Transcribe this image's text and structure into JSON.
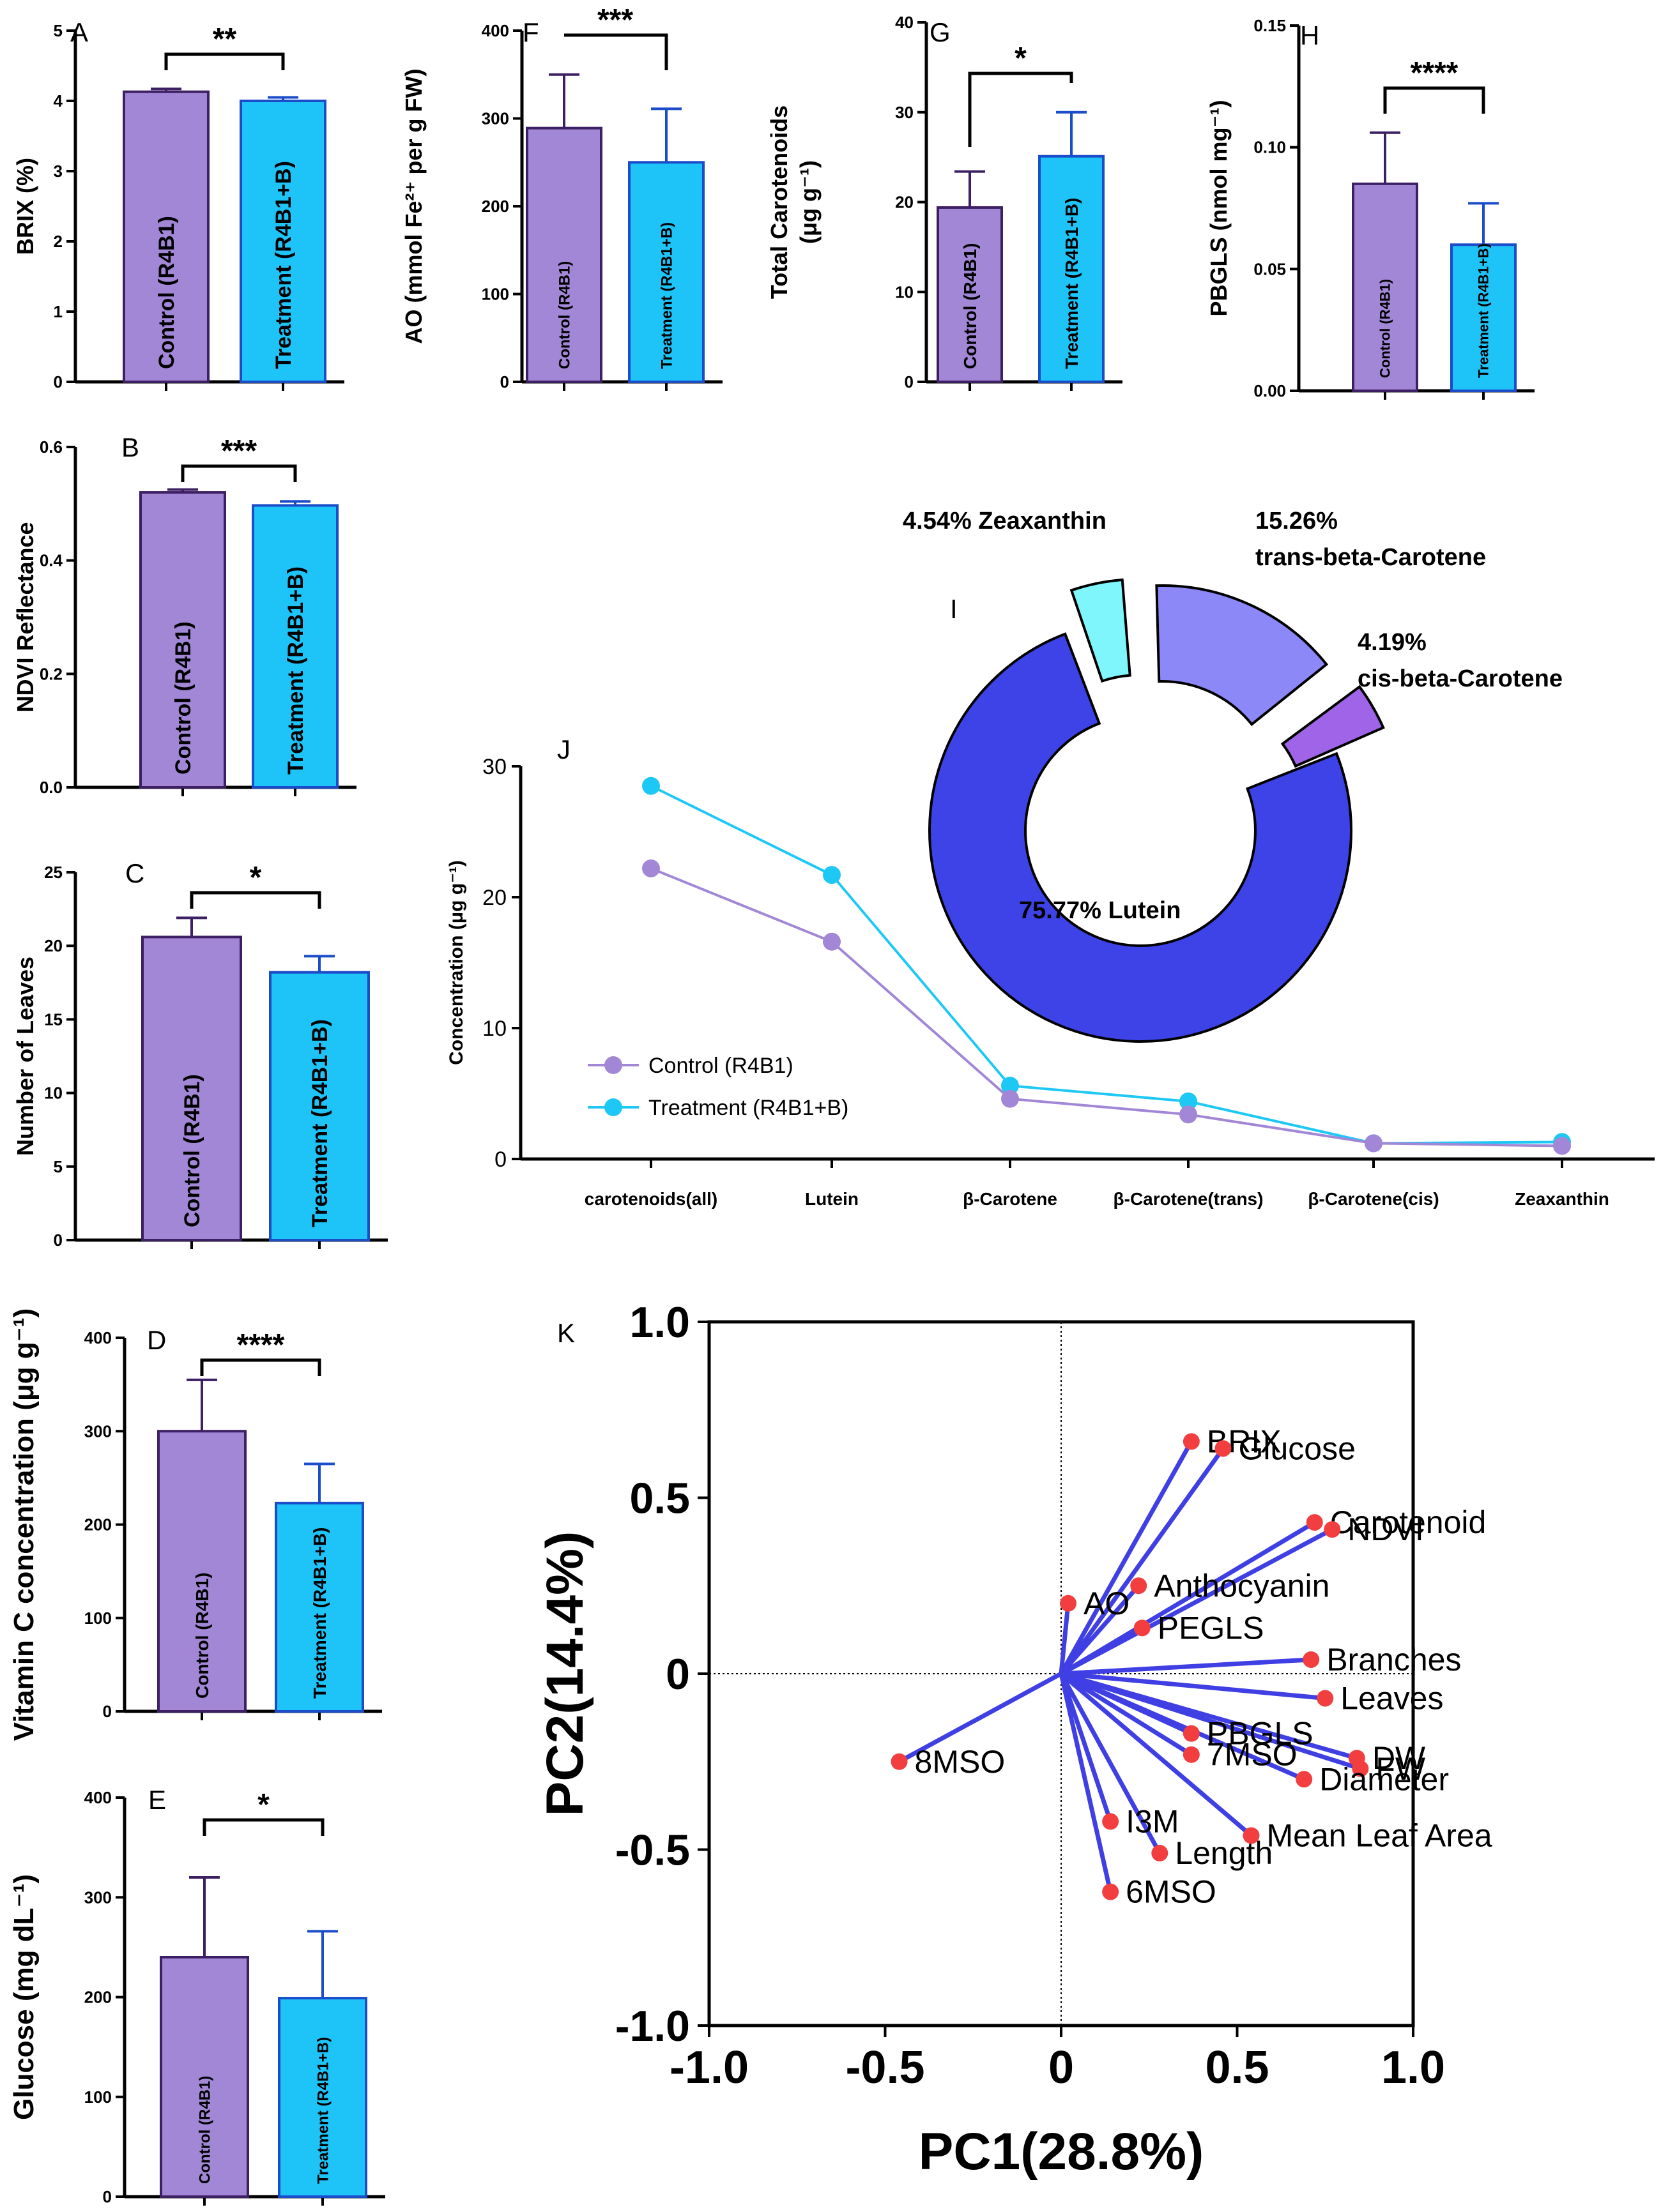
{
  "colors": {
    "control_fill": "#a187d6",
    "control_edge": "#3d1f63",
    "treatment_fill": "#1ec3f7",
    "treatment_edge": "#1b4cc9",
    "line_control": "#a187d6",
    "line_treatment": "#1ec8f5",
    "pie": [
      "#3d43e6",
      "#8c88f8",
      "#a064e8",
      "#7ff6fb"
    ],
    "pca_vector": "#3f3fe3",
    "pca_point": "#f23e3e"
  },
  "chart_data": [
    {
      "id": "A",
      "type": "bar",
      "letter": "A",
      "ylabel": "BRIX (%)",
      "categories": [
        "Control (R4B1)",
        "Treatment (R4B1+B)"
      ],
      "values": [
        4.13,
        4.0
      ],
      "errors": [
        0.04,
        0.05
      ],
      "ylim": [
        0,
        5
      ],
      "ticks": [
        "0",
        "1",
        "2",
        "3",
        "4",
        "5"
      ],
      "significance": "**"
    },
    {
      "id": "B",
      "type": "bar",
      "letter": "B",
      "ylabel": "NDVI Reflectance",
      "categories": [
        "Control (R4B1)",
        "Treatment (R4B1+B)"
      ],
      "values": [
        0.52,
        0.497
      ],
      "errors": [
        0.005,
        0.007
      ],
      "ylim": [
        0,
        0.6
      ],
      "ticks": [
        "0.0",
        "0.2",
        "0.4",
        "0.6"
      ],
      "significance": "***"
    },
    {
      "id": "C",
      "type": "bar",
      "letter": "C",
      "ylabel": "Number of Leaves",
      "categories": [
        "Control (R4B1)",
        "Treatment (R4B1+B)"
      ],
      "values": [
        20.6,
        18.2
      ],
      "errors": [
        1.3,
        1.1
      ],
      "ylim": [
        0,
        25
      ],
      "ticks": [
        "0",
        "5",
        "10",
        "15",
        "20",
        "25"
      ],
      "significance": "*"
    },
    {
      "id": "D",
      "type": "bar",
      "letter": "D",
      "ylabel": "Vitamin C concentration (μg g⁻¹)",
      "categories": [
        "Control (R4B1)",
        "Treatment (R4B1+B)"
      ],
      "values": [
        300,
        223
      ],
      "errors": [
        55,
        42
      ],
      "ylim": [
        0,
        400
      ],
      "ticks": [
        "0",
        "100",
        "200",
        "300",
        "400"
      ],
      "significance": "****"
    },
    {
      "id": "E",
      "type": "bar",
      "letter": "E",
      "ylabel": "Glucose (mg dL⁻¹)",
      "categories": [
        "Control (R4B1)",
        "Treatment (R4B1+B)"
      ],
      "values": [
        240,
        199
      ],
      "errors": [
        80,
        67
      ],
      "ylim": [
        0,
        400
      ],
      "ticks": [
        "0",
        "100",
        "200",
        "300",
        "400"
      ],
      "significance": "*"
    },
    {
      "id": "F",
      "type": "bar",
      "letter": "F",
      "ylabel": "AO (mmol Fe²⁺ per g FW)",
      "categories": [
        "Control (R4B1)",
        "Treatment (R4B1+B)"
      ],
      "values": [
        289,
        250
      ],
      "errors": [
        61,
        61
      ],
      "ylim": [
        0,
        400
      ],
      "ticks": [
        "0",
        "100",
        "200",
        "300",
        "400"
      ],
      "significance": "***"
    },
    {
      "id": "G",
      "type": "bar",
      "letter": "G",
      "ylabel": "Total Carotenoids",
      "ylabel2": "(μg g⁻¹)",
      "categories": [
        "Control (R4B1)",
        "Treatment (R4B1+B)"
      ],
      "values": [
        19.4,
        25.1
      ],
      "errors": [
        4.0,
        4.9
      ],
      "ylim": [
        0,
        40
      ],
      "ticks": [
        "0",
        "10",
        "20",
        "30",
        "40"
      ],
      "significance": "*"
    },
    {
      "id": "H",
      "type": "bar",
      "letter": "H",
      "ylabel": "PBGLS (nmol mg⁻¹)",
      "categories": [
        "Control (R4B1)",
        "Treatment (R4B1+B)"
      ],
      "values": [
        0.085,
        0.06
      ],
      "errors": [
        0.021,
        0.017
      ],
      "ylim": [
        0,
        0.15
      ],
      "ticks": [
        "0.00",
        "0.05",
        "0.10",
        "0.15"
      ],
      "significance": "****"
    },
    {
      "id": "I",
      "type": "pie",
      "letter": "I",
      "slices": [
        {
          "name": "Lutein",
          "percent": 75.77,
          "label": "75.77%  Lutein"
        },
        {
          "name": "trans-beta-Carotene",
          "percent": 15.26,
          "label": "15.26%",
          "label2": "trans-beta-Carotene"
        },
        {
          "name": "cis-beta-Carotene",
          "percent": 4.19,
          "label": "4.19%",
          "label2": "cis-beta-Carotene"
        },
        {
          "name": "Zeaxanthin",
          "percent": 4.54,
          "label": "4.54%  Zeaxanthin"
        }
      ]
    },
    {
      "id": "J",
      "type": "line",
      "letter": "J",
      "ylabel": "Concentration (μg g⁻¹)",
      "categories": [
        "carotenoids(all)",
        "Lutein",
        "β-Carotene",
        "β-Carotene(trans)",
        "β-Carotene(cis)",
        "Zeaxanthin"
      ],
      "series": [
        {
          "name": "Control (R4B1)",
          "values": [
            22.2,
            16.6,
            4.6,
            3.4,
            1.2,
            1.0
          ]
        },
        {
          "name": "Treatment (R4B1+B)",
          "values": [
            28.5,
            21.7,
            5.6,
            4.4,
            1.2,
            1.3
          ]
        }
      ],
      "ylim": [
        0,
        30
      ],
      "ticks": [
        "0",
        "10",
        "20",
        "30"
      ]
    },
    {
      "id": "K",
      "type": "scatter",
      "letter": "K",
      "xlabel": "PC1(28.8%)",
      "ylabel": "PC2(14.4%)",
      "xlim": [
        -1.0,
        1.0
      ],
      "ylim": [
        -1.0,
        1.0
      ],
      "xticks": [
        "-1.0",
        "-0.5",
        "0",
        "0.5",
        "1.0"
      ],
      "yticks": [
        "-1.0",
        "-0.5",
        "0",
        "0.5",
        "1.0"
      ],
      "points": [
        {
          "name": "BRIX",
          "x": 0.37,
          "y": 0.66
        },
        {
          "name": "Glucose",
          "x": 0.46,
          "y": 0.64
        },
        {
          "name": "Carotenoid",
          "x": 0.72,
          "y": 0.43
        },
        {
          "name": "NDVI",
          "x": 0.77,
          "y": 0.41
        },
        {
          "name": "AO",
          "x": 0.02,
          "y": 0.2
        },
        {
          "name": "Anthocyanin",
          "x": 0.22,
          "y": 0.25
        },
        {
          "name": "PEGLS",
          "x": 0.23,
          "y": 0.13
        },
        {
          "name": "Branches",
          "x": 0.71,
          "y": 0.04
        },
        {
          "name": "Leaves",
          "x": 0.75,
          "y": -0.07
        },
        {
          "name": "PBGLS",
          "x": 0.37,
          "y": -0.17
        },
        {
          "name": "7MSO",
          "x": 0.37,
          "y": -0.23
        },
        {
          "name": "DW",
          "x": 0.84,
          "y": -0.24
        },
        {
          "name": "FW",
          "x": 0.85,
          "y": -0.27
        },
        {
          "name": "Diameter",
          "x": 0.69,
          "y": -0.3
        },
        {
          "name": "8MSO",
          "x": -0.46,
          "y": -0.25
        },
        {
          "name": "I3M",
          "x": 0.14,
          "y": -0.42
        },
        {
          "name": "Length",
          "x": 0.28,
          "y": -0.51
        },
        {
          "name": "Mean Leaf Area",
          "x": 0.54,
          "y": -0.46
        },
        {
          "name": "6MSO",
          "x": 0.14,
          "y": -0.62
        }
      ]
    }
  ]
}
